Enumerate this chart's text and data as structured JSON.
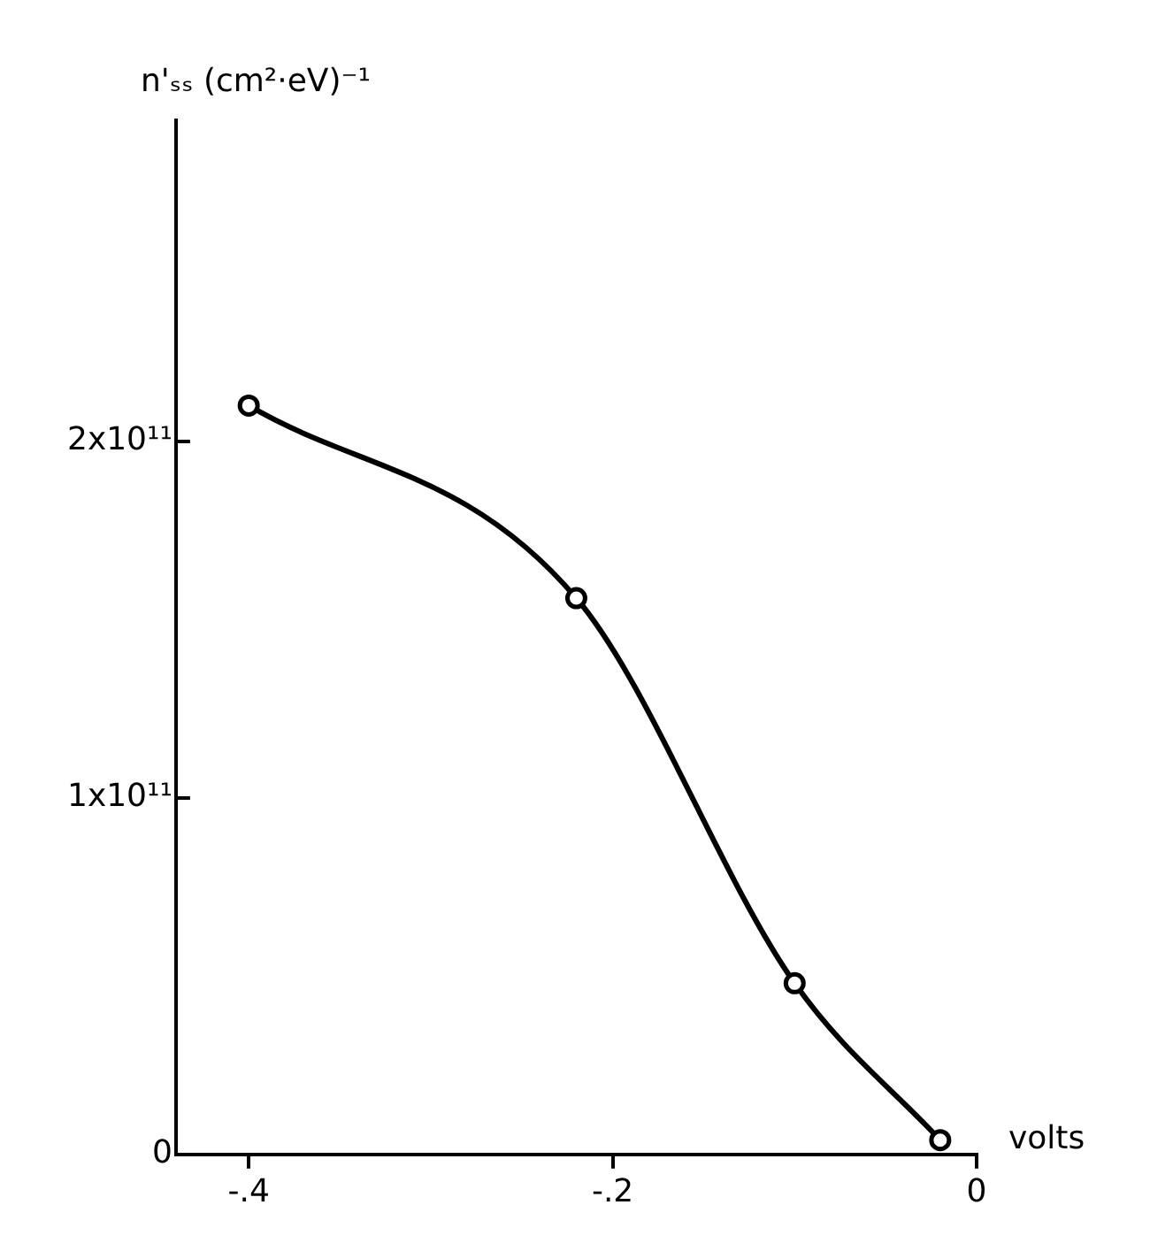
{
  "chart_data": {
    "type": "line",
    "xlabel": "volts",
    "ylabel": "n'ₛₛ (cm²·eV)⁻¹",
    "x": [
      -0.4,
      -0.22,
      -0.1,
      -0.02
    ],
    "series": [
      {
        "color": "#000000",
        "values": [
          210000000000.0,
          156000000000.0,
          48000000000.0,
          4000000000.0
        ]
      }
    ],
    "xlim": [
      -0.44,
      0
    ],
    "xticks": [
      {
        "value": -0.4,
        "label": "-.4"
      },
      {
        "value": -0.2,
        "label": "-.2"
      },
      0
    ],
    "ylim": [
      0,
      290000000000.0
    ],
    "yticks": [
      0,
      {
        "value": 100000000000.0,
        "label": "1x10¹¹"
      },
      {
        "value": 200000000000.0,
        "label": "2x10¹¹"
      }
    ],
    "grid": false,
    "legend": false,
    "marker": "circle",
    "line_style": "solid"
  }
}
